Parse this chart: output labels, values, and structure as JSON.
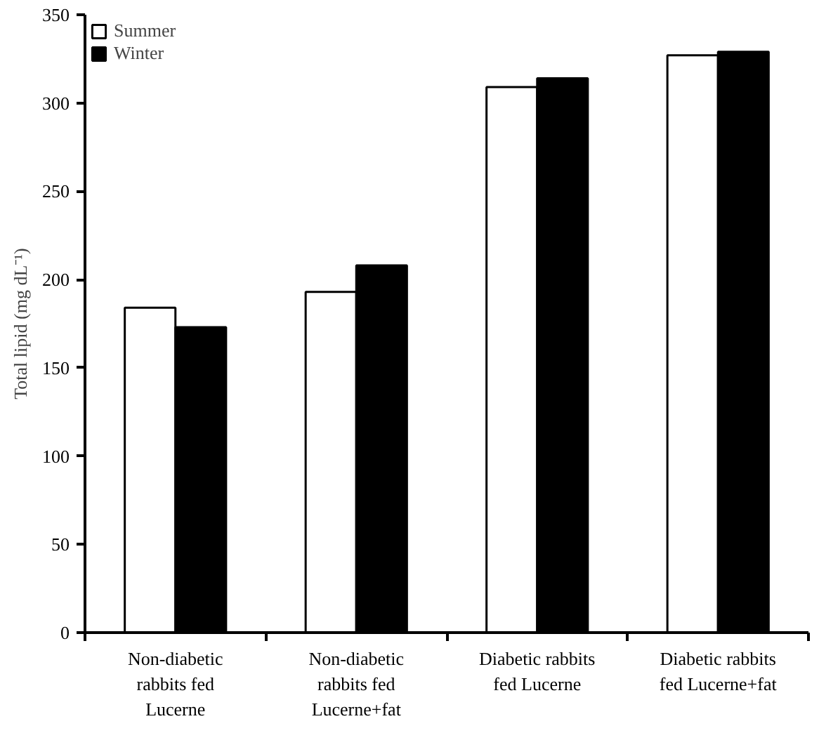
{
  "chart_data": {
    "type": "bar",
    "ylabel": "Total lipid (mg dL⁻¹)",
    "categories": [
      "Non-diabetic rabbits fed Lucerne",
      "Non-diabetic rabbits fed Lucerne+fat",
      "Diabetic rabbits fed Lucerne",
      "Diabetic rabbits fed Lucerne+fat"
    ],
    "series": [
      {
        "name": "Summer",
        "color": "#ffffff",
        "values": [
          184,
          193,
          309,
          327
        ]
      },
      {
        "name": "Winter",
        "color": "#000000",
        "values": [
          173,
          208,
          314,
          329
        ]
      }
    ],
    "ylim": [
      0,
      350
    ],
    "yticks": [
      0,
      50,
      100,
      150,
      200,
      250,
      300,
      350
    ],
    "grid": false,
    "legend": "top left"
  }
}
